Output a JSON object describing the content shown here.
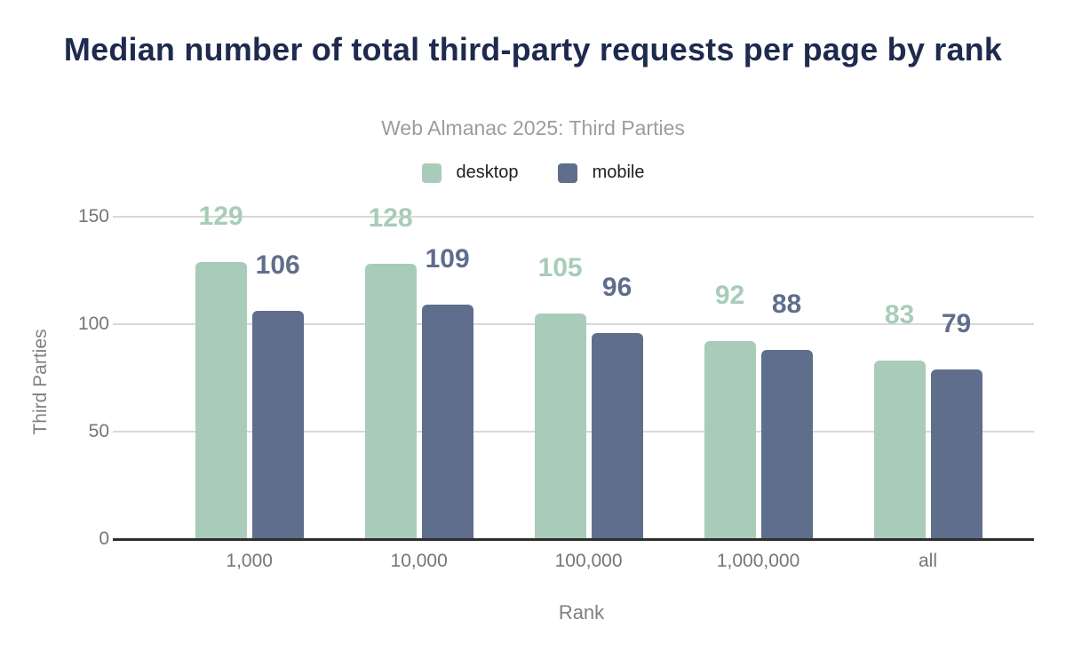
{
  "chart": {
    "title": "Median number of total third-party requests per page by rank",
    "subtitle": "Web Almanac 2025: Third Parties"
  },
  "chart_data": {
    "type": "bar",
    "title": "Median number of total third-party requests per page by rank",
    "subtitle": "Web Almanac 2025: Third Parties",
    "categories": [
      "1,000",
      "10,000",
      "100,000",
      "1,000,000",
      "all"
    ],
    "series": [
      {
        "name": "desktop",
        "values": [
          129,
          128,
          105,
          92,
          83
        ],
        "color": "#a8ccb9"
      },
      {
        "name": "mobile",
        "values": [
          106,
          109,
          96,
          88,
          79
        ],
        "color": "#5f6e8c"
      }
    ],
    "xlabel": "Rank",
    "ylabel": "Third Parties",
    "ylim": [
      0,
      150
    ],
    "yticks": [
      0,
      50,
      100,
      150
    ],
    "grid": true,
    "data_labels": true,
    "legend_position": "top-center"
  },
  "colors": {
    "title": "#1e2b4f",
    "subtitle": "#9a9da1",
    "axis_text": "#757575",
    "axis_title_text": "#7d8085",
    "legend_text": "#1f1f1f",
    "gridline": "#d8d8d8",
    "baseline": "#2e2e2e",
    "background": "#ffffff",
    "desktop": "#a8ccb9",
    "mobile": "#5f6e8c"
  }
}
